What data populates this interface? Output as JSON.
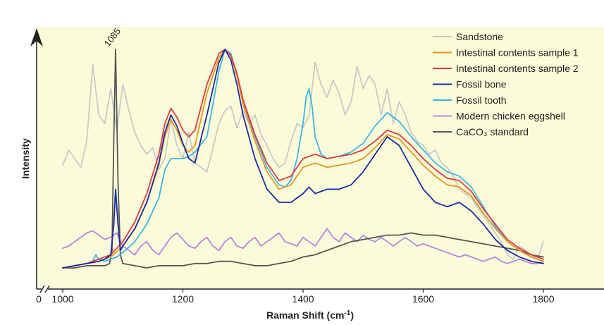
{
  "chart_data": {
    "type": "line",
    "xlabel": "Raman Shift (cm",
    "xlabel_sup": "-1",
    "xlabel_end": ")",
    "ylabel": "Intensity",
    "origin_label": "0",
    "xlim": [
      1000,
      1800
    ],
    "ylim": [
      0,
      100
    ],
    "x_ticks": [
      1000,
      1200,
      1400,
      1600,
      1800
    ],
    "y_ticks_shown": false,
    "x_axis_break": true,
    "grid": false,
    "legend_position": "top-right",
    "background_color": "#fafcd9",
    "annotations": [
      {
        "text": "1085",
        "x": 1088,
        "y": 100
      }
    ],
    "series": [
      {
        "name": "Sandstone",
        "color": "#c9c9c9",
        "x": [
          1000,
          1010,
          1020,
          1030,
          1040,
          1050,
          1060,
          1070,
          1080,
          1090,
          1100,
          1110,
          1120,
          1130,
          1140,
          1150,
          1160,
          1170,
          1180,
          1190,
          1200,
          1210,
          1220,
          1230,
          1240,
          1250,
          1260,
          1270,
          1280,
          1290,
          1300,
          1310,
          1320,
          1330,
          1340,
          1350,
          1360,
          1370,
          1380,
          1390,
          1400,
          1410,
          1420,
          1430,
          1440,
          1450,
          1460,
          1470,
          1480,
          1490,
          1500,
          1510,
          1520,
          1530,
          1540,
          1550,
          1560,
          1570,
          1580,
          1590,
          1600,
          1610,
          1620,
          1630,
          1640,
          1650,
          1660,
          1670,
          1680,
          1690,
          1700,
          1710,
          1720,
          1730,
          1740,
          1750,
          1760,
          1770,
          1780,
          1790,
          1800
        ],
        "y": [
          47,
          54,
          50,
          46,
          58,
          93,
          70,
          66,
          82,
          63,
          84,
          72,
          62,
          56,
          52,
          55,
          45,
          50,
          68,
          56,
          50,
          62,
          48,
          46,
          44,
          55,
          66,
          72,
          74,
          64,
          72,
          66,
          70,
          61,
          56,
          50,
          46,
          48,
          58,
          66,
          64,
          70,
          94,
          84,
          78,
          86,
          80,
          70,
          76,
          92,
          82,
          88,
          84,
          70,
          82,
          66,
          76,
          70,
          62,
          58,
          56,
          52,
          54,
          48,
          46,
          42,
          36,
          34,
          32,
          28,
          24,
          20,
          16,
          12,
          6,
          4,
          10,
          8,
          6,
          4,
          12
        ]
      },
      {
        "name": "Intestinal contents sample 1",
        "color": "#e8951c",
        "x": [
          1000,
          1020,
          1040,
          1060,
          1080,
          1100,
          1120,
          1140,
          1160,
          1170,
          1180,
          1190,
          1200,
          1210,
          1220,
          1240,
          1260,
          1270,
          1280,
          1290,
          1300,
          1320,
          1340,
          1360,
          1380,
          1400,
          1420,
          1440,
          1460,
          1480,
          1500,
          1520,
          1540,
          1560,
          1580,
          1600,
          1620,
          1640,
          1660,
          1680,
          1700,
          1720,
          1740,
          1760,
          1780,
          1800
        ],
        "y": [
          0,
          1,
          2,
          3,
          5,
          10,
          18,
          30,
          47,
          60,
          68,
          63,
          56,
          53,
          56,
          80,
          96,
          100,
          97,
          88,
          75,
          58,
          44,
          36,
          38,
          46,
          48,
          46,
          47,
          48,
          50,
          55,
          61,
          59,
          53,
          47,
          42,
          38,
          37,
          33,
          25,
          18,
          12,
          8,
          5,
          3
        ]
      },
      {
        "name": "Intestinal contents sample 2",
        "color": "#e03a3a",
        "x": [
          1000,
          1020,
          1040,
          1060,
          1080,
          1100,
          1120,
          1140,
          1160,
          1170,
          1180,
          1190,
          1200,
          1210,
          1220,
          1240,
          1260,
          1270,
          1280,
          1290,
          1300,
          1320,
          1340,
          1360,
          1380,
          1400,
          1420,
          1440,
          1460,
          1480,
          1500,
          1520,
          1540,
          1560,
          1580,
          1600,
          1620,
          1640,
          1660,
          1680,
          1700,
          1720,
          1740,
          1760,
          1780,
          1800
        ],
        "y": [
          0,
          1,
          2,
          4,
          6,
          12,
          21,
          34,
          52,
          66,
          73,
          69,
          63,
          60,
          63,
          84,
          98,
          100,
          97,
          89,
          77,
          61,
          48,
          40,
          42,
          50,
          52,
          50,
          51,
          52,
          54,
          58,
          63,
          61,
          56,
          50,
          45,
          41,
          40,
          35,
          27,
          20,
          13,
          9,
          6,
          4
        ]
      },
      {
        "name": "Fossil bone",
        "color": "#1a2aa8",
        "x": [
          1000,
          1020,
          1040,
          1060,
          1070,
          1080,
          1085,
          1088,
          1092,
          1096,
          1100,
          1120,
          1140,
          1160,
          1170,
          1180,
          1190,
          1200,
          1210,
          1220,
          1240,
          1260,
          1270,
          1280,
          1290,
          1300,
          1320,
          1340,
          1360,
          1380,
          1400,
          1410,
          1420,
          1440,
          1460,
          1480,
          1500,
          1520,
          1540,
          1560,
          1580,
          1600,
          1620,
          1640,
          1660,
          1680,
          1700,
          1720,
          1740,
          1760,
          1780,
          1800
        ],
        "y": [
          0,
          1,
          2,
          3,
          4,
          6,
          20,
          36,
          20,
          8,
          10,
          18,
          30,
          48,
          62,
          70,
          65,
          57,
          50,
          48,
          70,
          94,
          100,
          95,
          84,
          70,
          50,
          36,
          30,
          30,
          34,
          37,
          34,
          36,
          36,
          38,
          44,
          52,
          60,
          56,
          46,
          36,
          30,
          28,
          30,
          26,
          20,
          13,
          8,
          5,
          3,
          2
        ]
      },
      {
        "name": "Fossil tooth",
        "color": "#3fb3e8",
        "x": [
          1000,
          1020,
          1040,
          1050,
          1055,
          1060,
          1070,
          1080,
          1090,
          1100,
          1120,
          1140,
          1160,
          1170,
          1180,
          1190,
          1200,
          1210,
          1220,
          1240,
          1260,
          1270,
          1280,
          1290,
          1300,
          1320,
          1340,
          1360,
          1370,
          1380,
          1390,
          1400,
          1405,
          1410,
          1415,
          1420,
          1430,
          1440,
          1460,
          1480,
          1500,
          1520,
          1540,
          1560,
          1580,
          1600,
          1620,
          1640,
          1660,
          1680,
          1700,
          1720,
          1740,
          1760,
          1780,
          1800
        ],
        "y": [
          0,
          1,
          2,
          3,
          6,
          4,
          3,
          4,
          5,
          7,
          12,
          20,
          32,
          45,
          50,
          50,
          50,
          51,
          53,
          60,
          90,
          100,
          98,
          88,
          76,
          60,
          46,
          38,
          37,
          40,
          50,
          66,
          78,
          82,
          74,
          60,
          52,
          50,
          51,
          53,
          57,
          65,
          71,
          67,
          60,
          54,
          48,
          44,
          42,
          37,
          28,
          19,
          12,
          8,
          5,
          3
        ]
      },
      {
        "name": "Modern chicken eggshell",
        "color": "#b784e0",
        "x": [
          1000,
          1010,
          1020,
          1030,
          1040,
          1050,
          1060,
          1070,
          1080,
          1090,
          1100,
          1110,
          1120,
          1130,
          1140,
          1150,
          1160,
          1170,
          1180,
          1190,
          1200,
          1210,
          1220,
          1230,
          1240,
          1250,
          1260,
          1270,
          1280,
          1290,
          1300,
          1310,
          1320,
          1330,
          1340,
          1350,
          1360,
          1370,
          1380,
          1390,
          1400,
          1410,
          1420,
          1430,
          1440,
          1450,
          1460,
          1470,
          1480,
          1490,
          1500,
          1510,
          1520,
          1530,
          1540,
          1550,
          1560,
          1570,
          1580,
          1590,
          1600,
          1610,
          1620,
          1630,
          1640,
          1650,
          1660,
          1670,
          1680,
          1690,
          1700,
          1710,
          1720,
          1730,
          1740,
          1750,
          1760,
          1770,
          1780,
          1790,
          1800
        ],
        "y": [
          9,
          10,
          12,
          14,
          16,
          17,
          15,
          13,
          14,
          16,
          10,
          8,
          6,
          10,
          12,
          8,
          6,
          10,
          14,
          16,
          13,
          10,
          9,
          12,
          14,
          10,
          8,
          12,
          14,
          10,
          9,
          12,
          14,
          10,
          12,
          14,
          16,
          12,
          11,
          10,
          14,
          12,
          10,
          14,
          18,
          14,
          12,
          16,
          14,
          12,
          15,
          13,
          12,
          14,
          12,
          10,
          12,
          14,
          12,
          10,
          11,
          10,
          9,
          8,
          7,
          6,
          5,
          6,
          5,
          4,
          3,
          4,
          5,
          3,
          2,
          3,
          4,
          3,
          2,
          2,
          3
        ]
      },
      {
        "name": "CaCO₃ standard",
        "color": "#555555",
        "x": [
          1000,
          1020,
          1040,
          1060,
          1070,
          1078,
          1082,
          1085,
          1088,
          1092,
          1096,
          1100,
          1120,
          1140,
          1160,
          1180,
          1200,
          1220,
          1240,
          1260,
          1280,
          1300,
          1320,
          1340,
          1360,
          1380,
          1400,
          1420,
          1440,
          1460,
          1480,
          1500,
          1520,
          1540,
          1560,
          1580,
          1600,
          1620,
          1640,
          1660,
          1680,
          1700,
          1720,
          1740,
          1760,
          1780,
          1800
        ],
        "y": [
          0,
          0,
          1,
          1,
          1,
          2,
          8,
          60,
          100,
          40,
          6,
          2,
          1,
          0,
          1,
          1,
          1,
          2,
          2,
          3,
          3,
          2,
          1,
          1,
          2,
          3,
          5,
          6,
          8,
          10,
          12,
          13,
          14,
          15,
          15,
          16,
          15,
          15,
          14,
          13,
          12,
          11,
          10,
          9,
          8,
          6,
          5
        ]
      }
    ]
  }
}
